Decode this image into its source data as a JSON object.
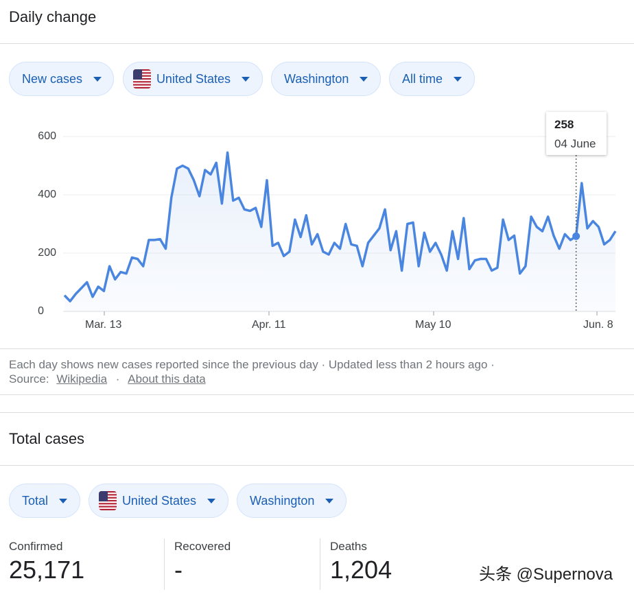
{
  "daily_change": {
    "title": "Daily change",
    "filters": [
      {
        "label": "New cases"
      },
      {
        "label": "United States"
      },
      {
        "label": "Washington"
      },
      {
        "label": "All time"
      }
    ],
    "tooltip": {
      "value": "258",
      "date": "04 June"
    },
    "footer": {
      "text": "Each day shows new cases reported since the previous day · Updated less than 2 hours ago ·",
      "source_label": "Source:",
      "source_link": "Wikipedia",
      "separator": "·",
      "about_link": "About this data"
    }
  },
  "chart_data": {
    "type": "area",
    "title": "Daily change",
    "ylim": [
      0,
      600
    ],
    "yticks": [
      "600",
      "400",
      "200",
      "0"
    ],
    "xticks": [
      "Mar. 13",
      "Apr. 11",
      "May 10",
      "Jun. 8"
    ],
    "series": [
      {
        "name": "New cases",
        "color": "#4a86e0",
        "values": [
          55,
          35,
          60,
          80,
          100,
          50,
          85,
          70,
          155,
          110,
          135,
          130,
          185,
          180,
          155,
          245,
          245,
          248,
          215,
          390,
          490,
          500,
          490,
          450,
          395,
          485,
          470,
          510,
          370,
          545,
          380,
          390,
          350,
          345,
          355,
          290,
          450,
          225,
          235,
          190,
          205,
          315,
          255,
          330,
          230,
          265,
          205,
          195,
          235,
          215,
          300,
          230,
          225,
          155,
          235,
          260,
          285,
          350,
          210,
          275,
          140,
          300,
          305,
          155,
          270,
          205,
          235,
          195,
          140,
          275,
          180,
          320,
          145,
          175,
          180,
          180,
          140,
          150,
          315,
          245,
          260,
          130,
          155,
          325,
          290,
          275,
          325,
          260,
          215,
          265,
          245,
          258,
          440,
          285,
          310,
          290,
          230,
          245,
          275
        ]
      }
    ],
    "highlight": {
      "index": 91,
      "value": 258,
      "label": "04 June"
    }
  },
  "total_cases": {
    "title": "Total cases",
    "filters": [
      {
        "label": "Total"
      },
      {
        "label": "United States"
      },
      {
        "label": "Washington"
      }
    ],
    "stats": [
      {
        "label": "Confirmed",
        "value": "25,171"
      },
      {
        "label": "Recovered",
        "value": "-"
      },
      {
        "label": "Deaths",
        "value": "1,204"
      }
    ]
  },
  "watermark": "头条 @Supernova"
}
